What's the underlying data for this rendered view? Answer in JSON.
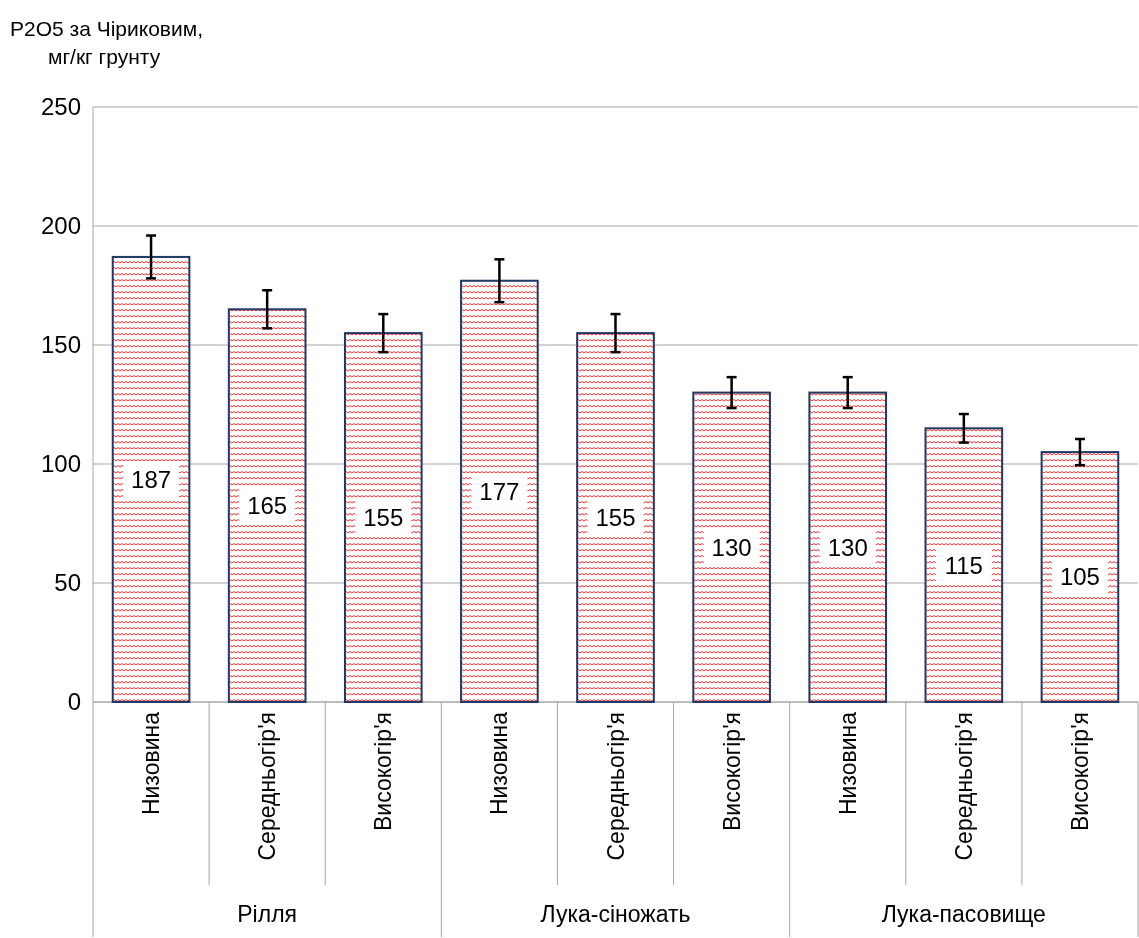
{
  "chart_data": {
    "type": "bar",
    "ylabel": "P2O5 за Чіриковим, мг/кг грунту",
    "categories": [
      "Низовина",
      "Середньогір'я",
      "Високогір'я",
      "Низовина",
      "Середньогір'я",
      "Високогір'я",
      "Низовина",
      "Середньогір'я",
      "Високогір'я"
    ],
    "annotations": [
      "Рілля",
      "Лука-сіножать",
      "Лука-пасовище"
    ],
    "values": [
      187,
      165,
      155,
      177,
      155,
      130,
      130,
      115,
      105
    ],
    "errors": [
      9,
      8,
      8,
      9,
      8,
      6.5,
      6.5,
      6,
      5.5
    ],
    "color": "#ff3030",
    "ylim": [
      0,
      250
    ],
    "yticks": [
      0,
      50,
      100,
      150,
      200,
      250
    ],
    "grid": "y",
    "data_labels": true
  }
}
